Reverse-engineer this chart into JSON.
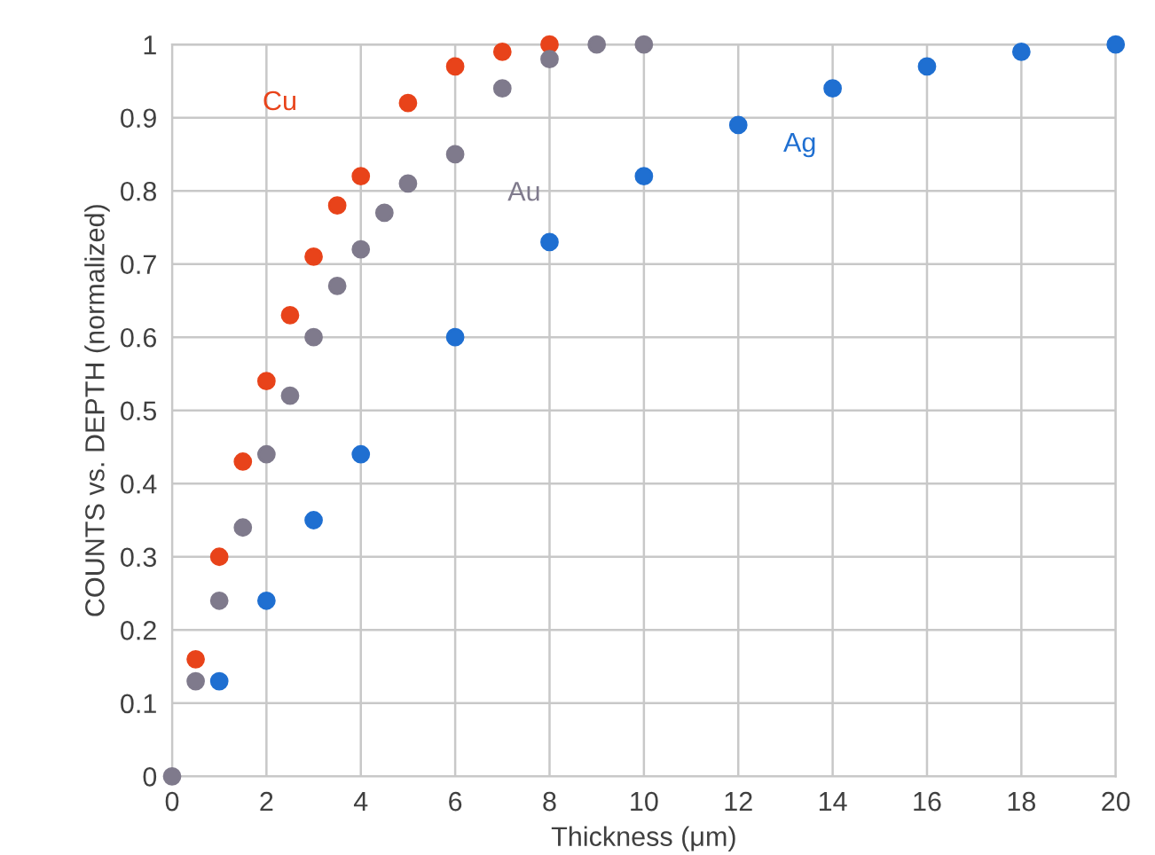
{
  "chart_data": {
    "type": "scatter",
    "xlabel": "Thickness (μm)",
    "ylabel": "COUNTS vs. DEPTH (normalized)",
    "xlim": [
      0,
      20
    ],
    "ylim": [
      0,
      1
    ],
    "xticks": [
      0,
      2,
      4,
      6,
      8,
      10,
      12,
      14,
      16,
      18,
      20
    ],
    "yticks": [
      0,
      0.1,
      0.2,
      0.3,
      0.4,
      0.5,
      0.6,
      0.7,
      0.8,
      0.9,
      1
    ],
    "grid": true,
    "marker": "circle",
    "legend": false,
    "series": [
      {
        "name": "Cu",
        "color": "#e8431a",
        "x": [
          0.5,
          1,
          1.5,
          2,
          2.5,
          3,
          3.5,
          4,
          5,
          6,
          7,
          8
        ],
        "values": [
          0.16,
          0.3,
          0.43,
          0.54,
          0.63,
          0.71,
          0.78,
          0.82,
          0.92,
          0.97,
          0.99,
          1.0
        ]
      },
      {
        "name": "Au",
        "color": "#7f7a8c",
        "x": [
          0,
          0.5,
          1,
          1.5,
          2,
          2.5,
          3,
          3.5,
          4,
          4.5,
          5,
          6,
          7,
          8,
          9,
          10
        ],
        "values": [
          0,
          0.13,
          0.24,
          0.34,
          0.44,
          0.52,
          0.6,
          0.67,
          0.72,
          0.77,
          0.81,
          0.85,
          0.94,
          0.98,
          1.0,
          1.0
        ]
      },
      {
        "name": "Ag",
        "color": "#1f6fd1",
        "x": [
          1,
          2,
          3,
          4,
          6,
          8,
          10,
          12,
          14,
          16,
          18,
          20
        ],
        "values": [
          0.13,
          0.24,
          0.35,
          0.44,
          0.6,
          0.73,
          0.82,
          0.89,
          0.94,
          0.97,
          0.99,
          1.0
        ]
      }
    ]
  }
}
